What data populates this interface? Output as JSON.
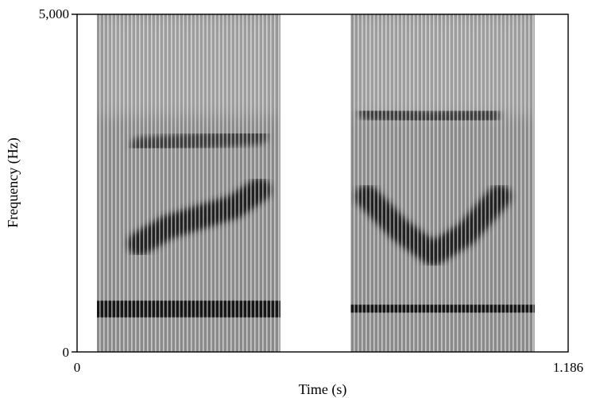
{
  "chart_data": {
    "type": "heatmap",
    "subtype": "spectrogram",
    "title": "",
    "xlabel": "Time (s)",
    "ylabel": "Frequency (Hz)",
    "xlim": [
      0,
      1.186
    ],
    "ylim": [
      0,
      5000
    ],
    "x_tick_labels": [
      "0",
      "1.186"
    ],
    "y_tick_labels": [
      "0",
      "5,000"
    ],
    "colormap": "grayscale (dark = high energy)",
    "grid": false,
    "segments": [
      {
        "name": "",
        "time_range_s": [
          0.048,
          0.491
        ],
        "formant_bands": [
          {
            "label": "F1",
            "time_s": [
              0.048,
              0.16,
              0.3,
              0.44,
              0.491
            ],
            "hz": [
              550,
              700,
              720,
              650,
              600
            ]
          },
          {
            "label": "F2",
            "time_s": [
              0.15,
              0.22,
              0.3,
              0.38,
              0.44
            ],
            "hz": [
              1600,
              1850,
              2000,
              2150,
              2400
            ]
          },
          {
            "label": "F3",
            "time_s": [
              0.15,
              0.25,
              0.35,
              0.44
            ],
            "hz": [
              3050,
              3100,
              3150,
              3200
            ]
          }
        ]
      },
      {
        "name": "",
        "time_range_s": [
          0.661,
          1.105
        ],
        "formant_bands": [
          {
            "label": "F1",
            "time_s": [
              0.661,
              0.75,
              0.85,
              0.95,
              1.05,
              1.105
            ],
            "hz": [
              600,
              650,
              680,
              650,
              620,
              600
            ]
          },
          {
            "label": "F2",
            "time_s": [
              0.7,
              0.78,
              0.86,
              0.94,
              1.02
            ],
            "hz": [
              2300,
              1800,
              1450,
              1750,
              2300
            ]
          },
          {
            "label": "F3",
            "time_s": [
              0.7,
              0.85,
              1.0
            ],
            "hz": [
              3550,
              3450,
              3500
            ]
          }
        ]
      }
    ]
  }
}
